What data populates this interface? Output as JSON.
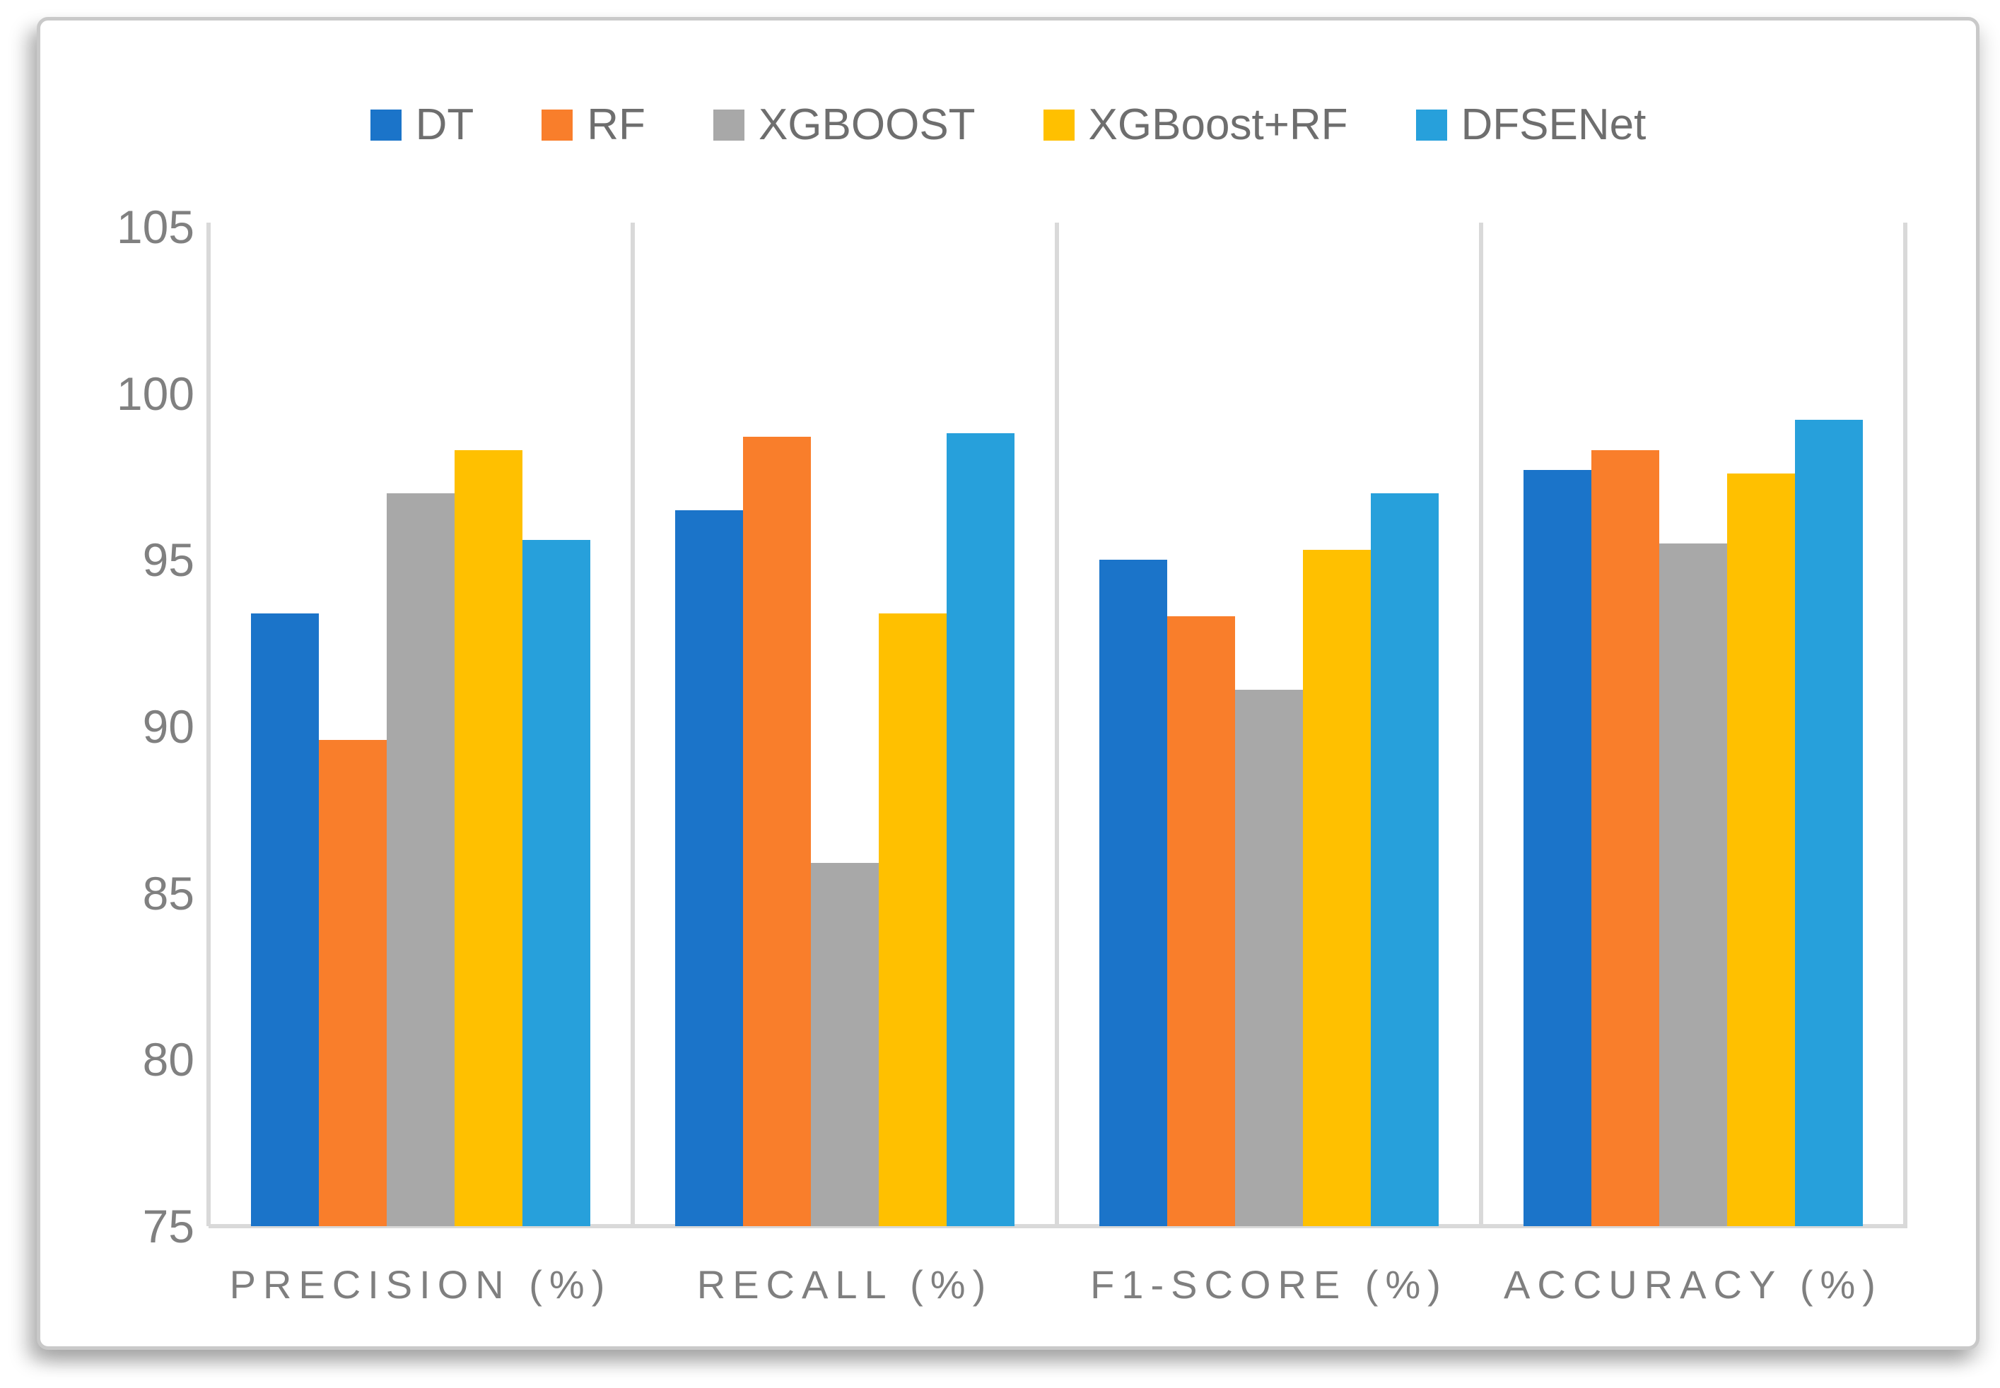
{
  "chart_data": {
    "type": "bar",
    "title": "",
    "categories": [
      "PRECISION (%)",
      "RECALL (%)",
      "F1-SCORE (%)",
      "ACCURACY (%)"
    ],
    "series": [
      {
        "name": "DT",
        "color": "#1b74c9",
        "values": [
          93.4,
          96.5,
          95.0,
          97.7
        ]
      },
      {
        "name": "RF",
        "color": "#f97e2b",
        "values": [
          89.6,
          98.7,
          93.3,
          98.3
        ]
      },
      {
        "name": "XGBOOST",
        "color": "#a8a8a8",
        "values": [
          97.0,
          85.9,
          91.1,
          95.5
        ]
      },
      {
        "name": "XGBoost+RF",
        "color": "#ffc000",
        "values": [
          98.3,
          93.4,
          95.3,
          97.6
        ]
      },
      {
        "name": "DFSENet",
        "color": "#27a0db",
        "values": [
          95.6,
          98.8,
          97.0,
          99.2
        ]
      }
    ],
    "ylim": [
      75,
      105
    ],
    "yticks": [
      "105",
      "100",
      "95",
      "90",
      "85",
      "80",
      "75"
    ],
    "ytick_values": [
      105,
      100,
      95,
      90,
      85,
      80,
      75
    ],
    "xlabel": "",
    "ylabel": "",
    "grid": "vertical category separators only, no horizontal gridlines",
    "legend_position": "top-center",
    "axis_line_color": "#d9d9d9",
    "tick_text_color": "#808080",
    "legend_text_color": "#6e6e6e",
    "background_color": "#ffffff",
    "card_border_color": "#c9c9c9"
  }
}
